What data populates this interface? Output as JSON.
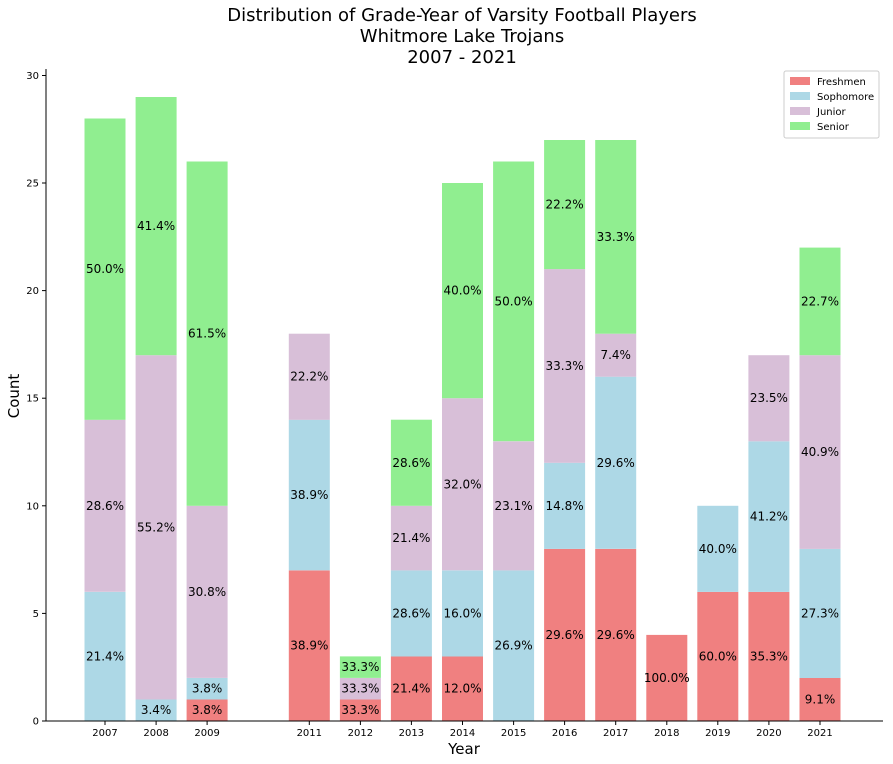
{
  "chart_data": {
    "type": "bar",
    "stacked": true,
    "title": [
      "Distribution of Grade-Year of Varsity Football Players",
      "Whitmore Lake Trojans",
      "2007 - 2021"
    ],
    "xlabel": "Year",
    "ylabel": "Count",
    "ylim": [
      0,
      30.3
    ],
    "yticks": [
      0,
      5,
      10,
      15,
      20,
      25,
      30
    ],
    "grid": false,
    "legend_position": "top-right",
    "categories": [
      "2007",
      "2008",
      "2009",
      "2011",
      "2012",
      "2013",
      "2014",
      "2015",
      "2016",
      "2017",
      "2018",
      "2019",
      "2020",
      "2021"
    ],
    "x": [
      2007,
      2008,
      2009,
      2011,
      2012,
      2013,
      2014,
      2015,
      2016,
      2017,
      2018,
      2019,
      2020,
      2021
    ],
    "series": [
      {
        "name": "Freshmen",
        "color": "#f08080",
        "values": [
          0,
          0,
          1,
          7,
          1,
          3,
          3,
          0,
          8,
          8,
          4,
          6,
          6,
          2
        ],
        "labels": [
          "",
          "",
          "3.8%",
          "38.9%",
          "33.3%",
          "21.4%",
          "12.0%",
          "",
          "29.6%",
          "29.6%",
          "100.0%",
          "60.0%",
          "35.3%",
          "9.1%"
        ]
      },
      {
        "name": "Sophomore",
        "color": "#add8e6",
        "values": [
          6,
          1,
          1,
          7,
          0,
          4,
          4,
          7,
          4,
          8,
          0,
          4,
          7,
          6
        ],
        "labels": [
          "21.4%",
          "3.4%",
          "3.8%",
          "38.9%",
          "",
          "28.6%",
          "16.0%",
          "26.9%",
          "14.8%",
          "29.6%",
          "",
          "40.0%",
          "41.2%",
          "27.3%"
        ]
      },
      {
        "name": "Junior",
        "color": "#d8bfd8",
        "values": [
          8,
          16,
          8,
          4,
          1,
          3,
          8,
          6,
          9,
          2,
          0,
          0,
          4,
          9
        ],
        "labels": [
          "28.6%",
          "55.2%",
          "30.8%",
          "22.2%",
          "33.3%",
          "21.4%",
          "32.0%",
          "23.1%",
          "33.3%",
          "7.4%",
          "",
          "",
          "23.5%",
          "40.9%"
        ]
      },
      {
        "name": "Senior",
        "color": "#90ee90",
        "values": [
          14,
          12,
          16,
          0,
          1,
          4,
          10,
          13,
          6,
          9,
          0,
          0,
          0,
          5
        ],
        "labels": [
          "50.0%",
          "41.4%",
          "61.5%",
          "",
          "33.3%",
          "28.6%",
          "40.0%",
          "50.0%",
          "22.2%",
          "33.3%",
          "",
          "",
          "",
          "22.7%"
        ]
      }
    ]
  }
}
